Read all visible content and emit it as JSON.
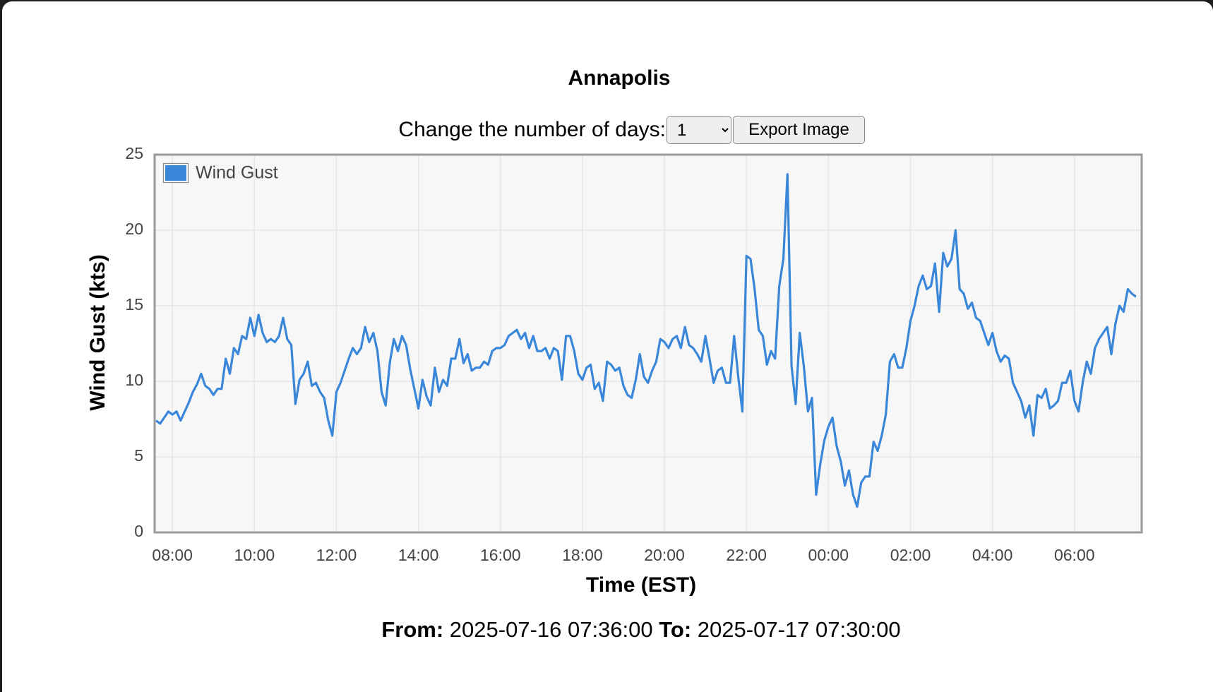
{
  "page": {
    "control_label": "Change the number of days:",
    "days_option": "1",
    "export_button": "Export Image",
    "from_label": "From:",
    "from_value": "2025-07-16 07:36:00",
    "to_label": "To:",
    "to_value": "2025-07-17 07:30:00"
  },
  "chart_data": {
    "type": "line",
    "title": "Annapolis",
    "x_label": "Time (EST)",
    "y_label": "Wind Gust (kts)",
    "legend": "top-left",
    "grid": true,
    "xlim": [
      7.566,
      31.64
    ],
    "ylim": [
      0,
      25
    ],
    "yticks": [
      0,
      5,
      10,
      15,
      20,
      25
    ],
    "xticks": [
      {
        "value": 8,
        "label": "08:00"
      },
      {
        "value": 10,
        "label": "10:00"
      },
      {
        "value": 12,
        "label": "12:00"
      },
      {
        "value": 14,
        "label": "14:00"
      },
      {
        "value": 16,
        "label": "16:00"
      },
      {
        "value": 18,
        "label": "18:00"
      },
      {
        "value": 20,
        "label": "20:00"
      },
      {
        "value": 22,
        "label": "22:00"
      },
      {
        "value": 24,
        "label": "00:00"
      },
      {
        "value": 26,
        "label": "02:00"
      },
      {
        "value": 28,
        "label": "04:00"
      },
      {
        "value": 30,
        "label": "06:00"
      }
    ],
    "x": [
      7.6,
      7.7,
      7.8,
      7.9,
      8.0,
      8.1,
      8.2,
      8.3,
      8.4,
      8.5,
      8.6,
      8.7,
      8.8,
      8.9,
      9.0,
      9.1,
      9.2,
      9.3,
      9.4,
      9.5,
      9.6,
      9.7,
      9.8,
      9.9,
      10.0,
      10.1,
      10.2,
      10.3,
      10.4,
      10.5,
      10.6,
      10.7,
      10.8,
      10.9,
      11.0,
      11.1,
      11.2,
      11.3,
      11.4,
      11.5,
      11.6,
      11.7,
      11.8,
      11.9,
      12.0,
      12.1,
      12.2,
      12.3,
      12.4,
      12.5,
      12.6,
      12.7,
      12.8,
      12.9,
      13.0,
      13.1,
      13.2,
      13.3,
      13.4,
      13.5,
      13.6,
      13.7,
      13.8,
      13.9,
      14.0,
      14.1,
      14.2,
      14.3,
      14.4,
      14.5,
      14.6,
      14.7,
      14.8,
      14.9,
      15.0,
      15.1,
      15.2,
      15.3,
      15.4,
      15.5,
      15.6,
      15.7,
      15.8,
      15.9,
      16.0,
      16.1,
      16.2,
      16.3,
      16.4,
      16.5,
      16.6,
      16.7,
      16.8,
      16.9,
      17.0,
      17.1,
      17.2,
      17.3,
      17.4,
      17.5,
      17.6,
      17.7,
      17.8,
      17.9,
      18.0,
      18.1,
      18.2,
      18.3,
      18.4,
      18.5,
      18.6,
      18.7,
      18.8,
      18.9,
      19.0,
      19.1,
      19.2,
      19.3,
      19.4,
      19.5,
      19.6,
      19.7,
      19.8,
      19.9,
      20.0,
      20.1,
      20.2,
      20.3,
      20.4,
      20.5,
      20.6,
      20.7,
      20.8,
      20.9,
      21.0,
      21.1,
      21.2,
      21.3,
      21.4,
      21.5,
      21.6,
      21.7,
      21.8,
      21.9,
      22.0,
      22.1,
      22.2,
      22.3,
      22.4,
      22.5,
      22.6,
      22.7,
      22.8,
      22.9,
      23.0,
      23.1,
      23.2,
      23.3,
      23.4,
      23.5,
      23.6,
      23.7,
      23.8,
      23.9,
      24.0,
      24.1,
      24.2,
      24.3,
      24.4,
      24.5,
      24.6,
      24.7,
      24.8,
      24.9,
      25.0,
      25.1,
      25.2,
      25.3,
      25.4,
      25.5,
      25.6,
      25.7,
      25.8,
      25.9,
      26.0,
      26.1,
      26.2,
      26.3,
      26.4,
      26.5,
      26.6,
      26.7,
      26.8,
      26.9,
      27.0,
      27.1,
      27.2,
      27.3,
      27.4,
      27.5,
      27.6,
      27.7,
      27.8,
      27.9,
      28.0,
      28.1,
      28.2,
      28.3,
      28.4,
      28.5,
      28.6,
      28.7,
      28.8,
      28.9,
      29.0,
      29.1,
      29.2,
      29.3,
      29.4,
      29.5,
      29.6,
      29.7,
      29.8,
      29.9,
      30.0,
      30.1,
      30.2,
      30.3,
      30.4,
      30.5,
      30.6,
      30.7,
      30.8,
      30.9,
      31.0,
      31.1,
      31.2,
      31.3,
      31.4,
      31.5
    ],
    "series": [
      {
        "name": "Wind Gust",
        "color": "#3a87d9",
        "values": [
          7.4,
          7.2,
          7.6,
          8.0,
          7.8,
          8.0,
          7.4,
          8.0,
          8.6,
          9.3,
          9.8,
          10.5,
          9.7,
          9.5,
          9.1,
          9.5,
          9.5,
          11.5,
          10.5,
          12.2,
          11.8,
          13.0,
          12.8,
          14.2,
          13.0,
          14.4,
          13.2,
          12.6,
          12.8,
          12.6,
          13.0,
          14.2,
          12.8,
          12.4,
          8.5,
          10.1,
          10.5,
          11.3,
          9.7,
          9.9,
          9.3,
          8.9,
          7.4,
          6.4,
          9.3,
          9.9,
          10.7,
          11.5,
          12.2,
          11.8,
          12.2,
          13.6,
          12.6,
          13.2,
          12.0,
          9.3,
          8.4,
          11.2,
          12.8,
          12.0,
          13.0,
          12.4,
          10.8,
          9.5,
          8.2,
          10.1,
          9.0,
          8.4,
          10.9,
          9.3,
          10.1,
          9.7,
          11.5,
          11.5,
          12.8,
          11.2,
          11.8,
          10.7,
          10.9,
          10.9,
          11.3,
          11.1,
          12.0,
          12.2,
          12.2,
          12.4,
          13.0,
          13.2,
          13.4,
          12.8,
          13.2,
          12.2,
          13.0,
          12.0,
          12.0,
          12.2,
          11.5,
          12.2,
          12.0,
          10.1,
          13.0,
          13.0,
          12.0,
          10.5,
          10.1,
          10.9,
          11.1,
          9.5,
          9.9,
          8.7,
          11.3,
          11.1,
          10.7,
          10.9,
          9.7,
          9.1,
          8.9,
          10.1,
          11.8,
          10.3,
          9.9,
          10.7,
          11.3,
          12.8,
          12.6,
          12.2,
          12.8,
          13.0,
          12.2,
          13.6,
          12.4,
          12.2,
          11.8,
          11.3,
          13.0,
          11.5,
          9.9,
          10.7,
          10.9,
          9.9,
          9.9,
          13.0,
          10.3,
          8.0,
          18.3,
          18.1,
          16.1,
          13.4,
          13.0,
          11.1,
          12.0,
          11.5,
          16.3,
          18.1,
          23.7,
          11.0,
          8.5,
          13.2,
          11.0,
          8.0,
          8.9,
          2.5,
          4.5,
          6.1,
          7.0,
          7.6,
          5.7,
          4.7,
          3.1,
          4.1,
          2.5,
          1.7,
          3.3,
          3.7,
          3.7,
          6.0,
          5.4,
          6.4,
          7.8,
          11.3,
          11.8,
          10.9,
          10.9,
          12.2,
          14.0,
          15.0,
          16.3,
          17.0,
          16.1,
          16.3,
          17.8,
          14.6,
          18.5,
          17.6,
          18.1,
          20.0,
          16.1,
          15.8,
          14.8,
          15.2,
          14.2,
          14.0,
          13.2,
          12.4,
          13.2,
          12.0,
          11.3,
          11.7,
          11.5,
          9.9,
          9.3,
          8.7,
          7.6,
          8.4,
          6.4,
          9.1,
          8.9,
          9.5,
          8.2,
          8.4,
          8.7,
          9.9,
          9.9,
          10.7,
          8.7,
          8.0,
          9.9,
          11.3,
          10.5,
          12.2,
          12.8,
          13.2,
          13.6,
          11.8,
          13.8,
          15.0,
          14.6,
          16.1,
          15.8,
          15.6
        ]
      }
    ]
  }
}
